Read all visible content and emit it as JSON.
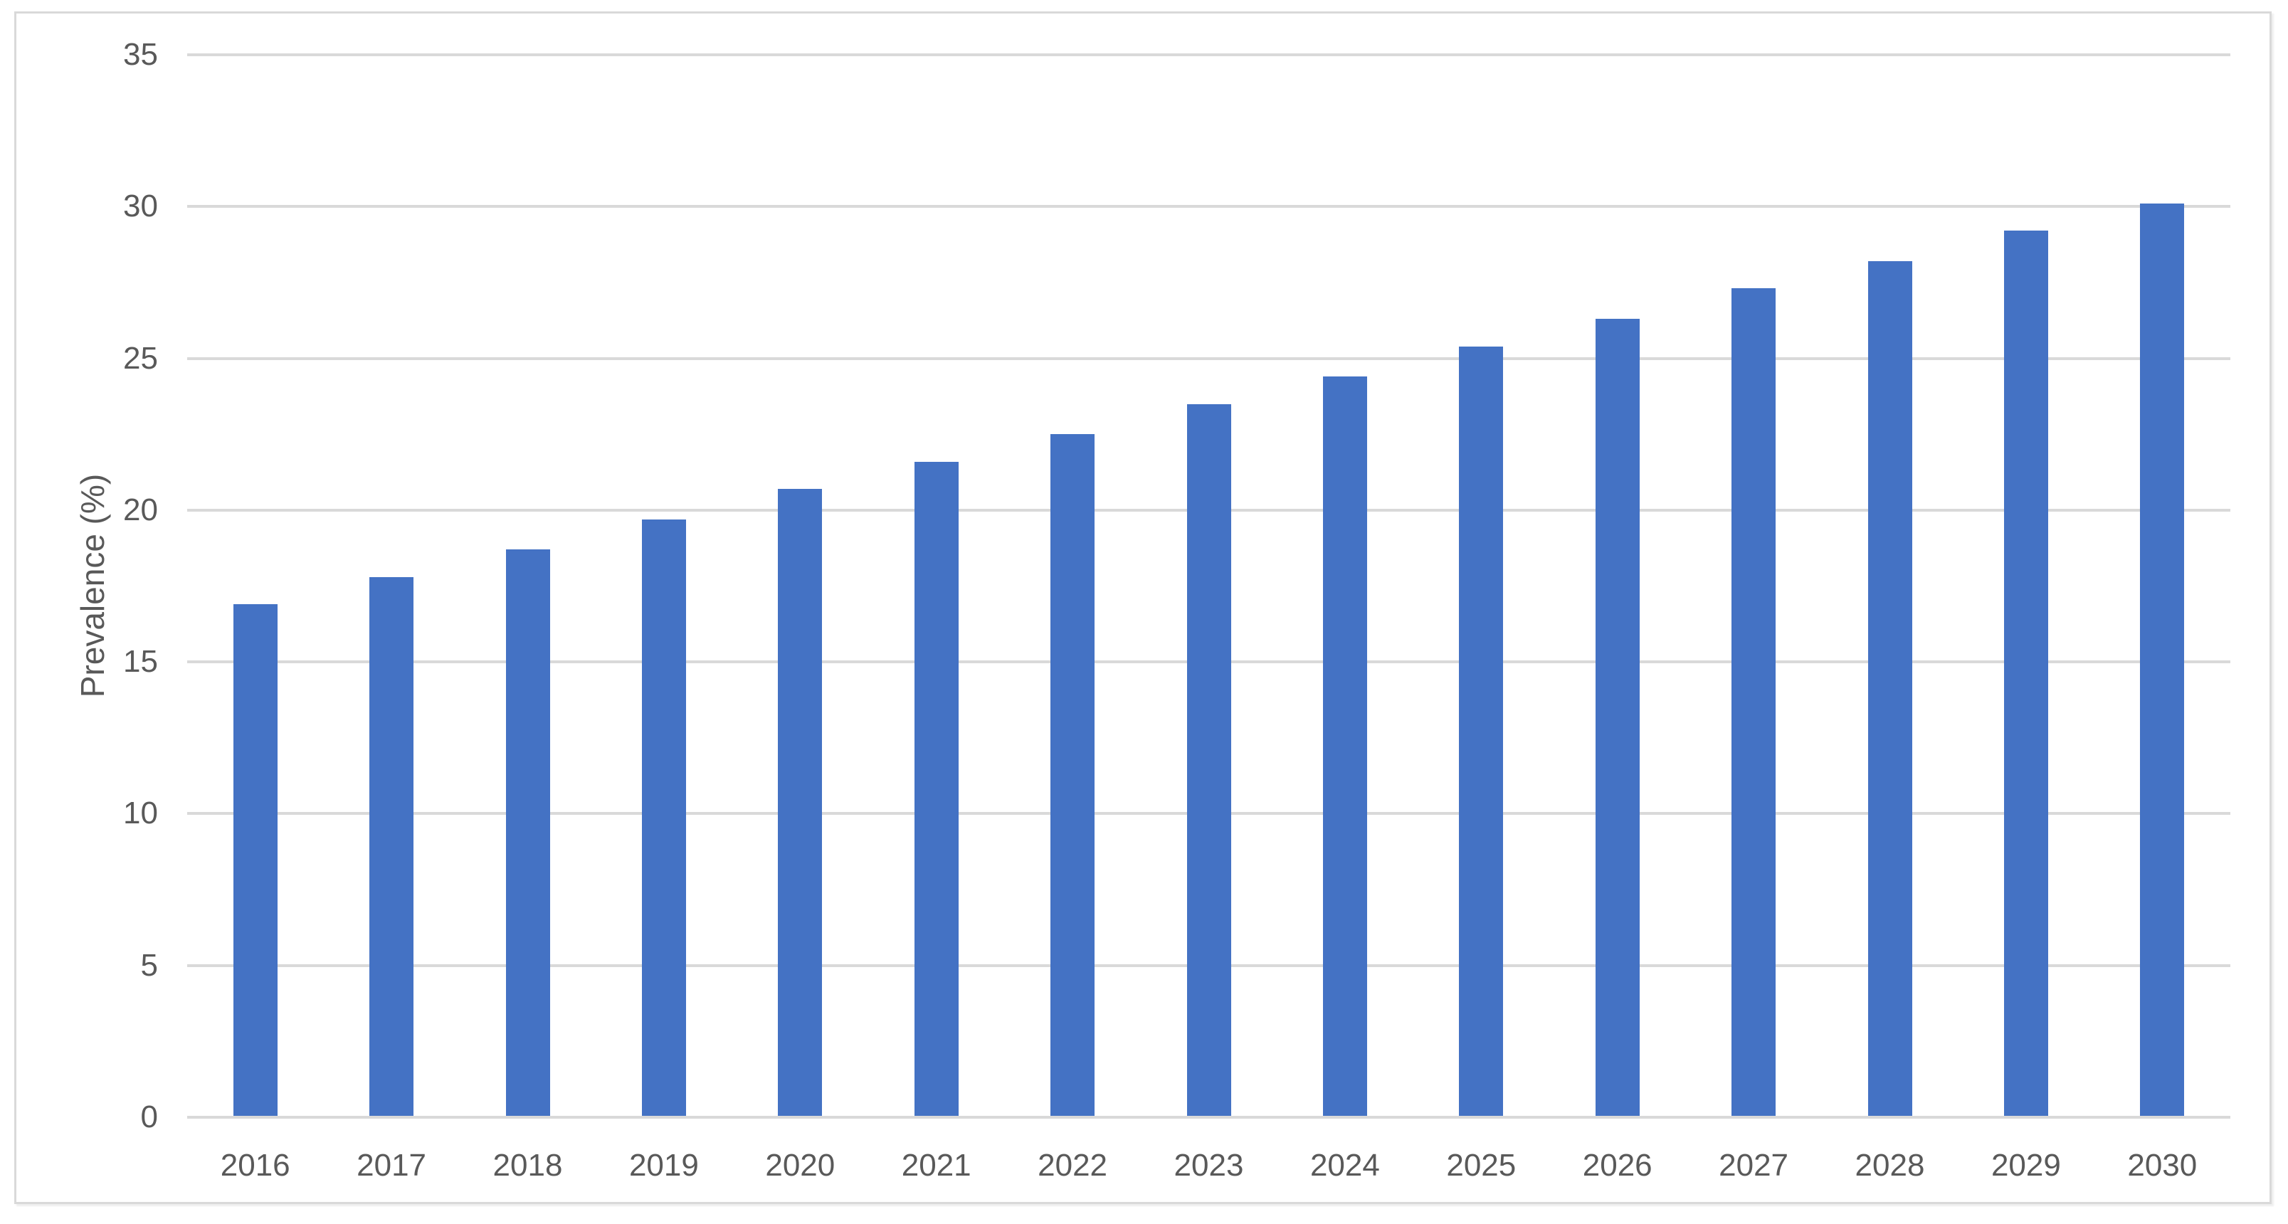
{
  "chart_data": {
    "type": "bar",
    "title": "",
    "xlabel": "",
    "ylabel": "Prevalence (%)",
    "categories": [
      "2016",
      "2017",
      "2018",
      "2019",
      "2020",
      "2021",
      "2022",
      "2023",
      "2024",
      "2025",
      "2026",
      "2027",
      "2028",
      "2029",
      "2030"
    ],
    "values": [
      16.9,
      17.8,
      18.7,
      19.7,
      20.7,
      21.6,
      22.5,
      23.5,
      24.4,
      25.4,
      26.3,
      27.3,
      28.2,
      29.2,
      30.1
    ],
    "ylim": [
      0,
      35
    ],
    "ytick_step": 5,
    "ytick_labels": [
      "0",
      "5",
      "10",
      "15",
      "20",
      "25",
      "30",
      "35"
    ],
    "grid": true,
    "legend": false,
    "bar_color": "#4472C4",
    "grid_color": "#D9D9D9",
    "axis_line_color": "#D9D9D9",
    "frame_border_color": "#D9D9D9",
    "text_color": "#595959",
    "background_color": "#FFFFFF"
  }
}
